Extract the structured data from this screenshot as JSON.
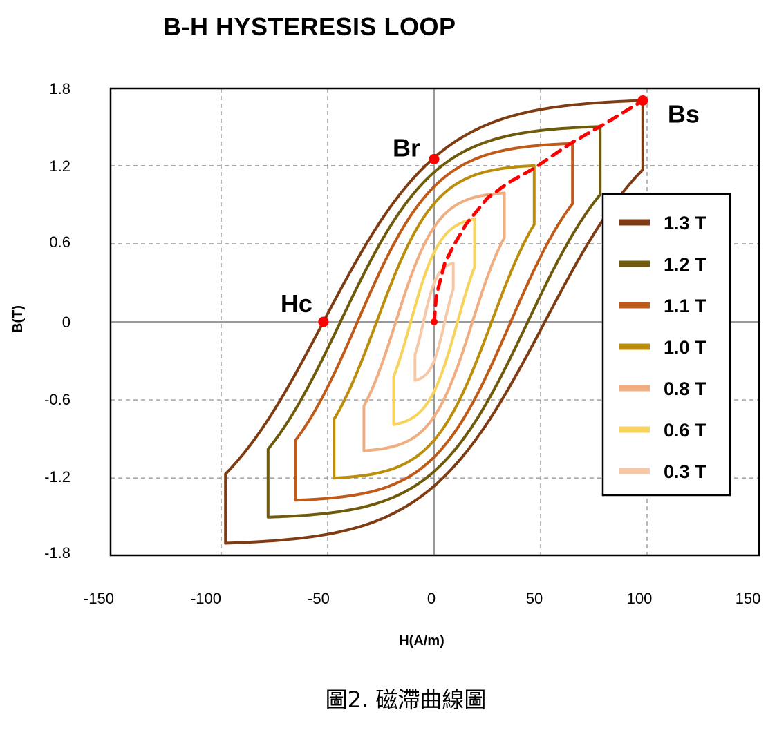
{
  "chart_data": {
    "type": "line",
    "title": "B-H HYSTERESIS LOOP",
    "xlabel": "H(A/m)",
    "ylabel": "B(T)",
    "xlim": [
      -150,
      150
    ],
    "ylim": [
      -1.8,
      1.8
    ],
    "xticks": [
      "-150",
      "-100",
      "-50",
      "0",
      "50",
      "100",
      "150"
    ],
    "yticks": [
      "1.8",
      "1.2",
      "0.6",
      "0",
      "-0.6",
      "-1.2",
      "-1.8"
    ],
    "grid": true,
    "legend_position": "right",
    "series": [
      {
        "name": "1.3 T",
        "color": "#7f3c12",
        "Bmax": 1.3,
        "Hs": 98,
        "Bs": 1.7,
        "Hc": 52,
        "Br": 1.25
      },
      {
        "name": "1.2 T",
        "color": "#6f5a0c",
        "Bmax": 1.2,
        "Hs": 78,
        "Bs": 1.5,
        "Hc": 44,
        "Br": 1.14
      },
      {
        "name": "1.1 T",
        "color": "#c05a18",
        "Bmax": 1.1,
        "Hs": 65,
        "Bs": 1.37,
        "Hc": 36,
        "Br": 1.03
      },
      {
        "name": "1.0 T",
        "color": "#bc8c0b",
        "Bmax": 1.0,
        "Hs": 47,
        "Bs": 1.2,
        "Hc": 27,
        "Br": 0.9
      },
      {
        "name": "0.8 T",
        "color": "#f0ad80",
        "Bmax": 0.8,
        "Hs": 33,
        "Bs": 0.99,
        "Hc": 18,
        "Br": 0.72
      },
      {
        "name": "0.6 T",
        "color": "#f7d35c",
        "Bmax": 0.6,
        "Hs": 19,
        "Bs": 0.79,
        "Hc": 11,
        "Br": 0.52
      },
      {
        "name": "0.3 T",
        "color": "#f7c8a6",
        "Bmax": 0.3,
        "Hs": 9,
        "Bs": 0.45,
        "Hc": 5,
        "Br": 0.29
      }
    ],
    "initial_magnetization": {
      "color": "#ff0000",
      "x": [
        0,
        1,
        5,
        9,
        15,
        25,
        35,
        47,
        65,
        80,
        98
      ],
      "y": [
        0,
        0.2,
        0.45,
        0.58,
        0.75,
        0.95,
        1.07,
        1.18,
        1.38,
        1.52,
        1.7
      ]
    },
    "annotations": [
      {
        "label": "Bs",
        "x": 98,
        "y": 1.7
      },
      {
        "label": "Br",
        "x": 0,
        "y": 1.25
      },
      {
        "label": "Hc",
        "x": -52,
        "y": 0
      }
    ]
  },
  "caption": "圖2. 磁滯曲線圖"
}
